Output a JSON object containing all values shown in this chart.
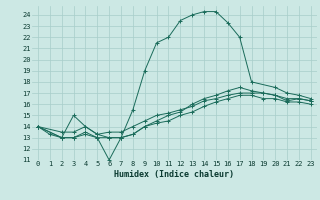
{
  "xlabel": "Humidex (Indice chaleur)",
  "xlim": [
    -0.5,
    23.5
  ],
  "ylim": [
    11,
    24.8
  ],
  "xticks": [
    0,
    1,
    2,
    3,
    4,
    5,
    6,
    7,
    8,
    9,
    10,
    11,
    12,
    13,
    14,
    15,
    16,
    17,
    18,
    19,
    20,
    21,
    22,
    23
  ],
  "yticks": [
    11,
    12,
    13,
    14,
    15,
    16,
    17,
    18,
    19,
    20,
    21,
    22,
    23,
    24
  ],
  "bg_color": "#cce8e4",
  "grid_color": "#a8ceca",
  "line_color": "#1a6b5a",
  "line1_x": [
    0,
    1,
    2,
    3,
    4,
    5,
    6,
    7,
    8,
    9,
    10,
    11,
    12,
    13,
    14,
    15,
    16,
    17,
    18,
    20,
    21,
    22,
    23
  ],
  "line1_y": [
    14,
    13.3,
    13,
    13,
    13.3,
    13,
    11,
    13,
    15.5,
    19,
    21.5,
    22,
    23.5,
    24,
    24.3,
    24.3,
    23.3,
    22,
    18,
    17.5,
    17,
    16.8,
    16.5
  ],
  "line2_x": [
    0,
    2,
    3,
    4,
    5,
    6,
    7,
    8,
    9,
    10,
    11,
    12,
    13,
    14,
    15,
    16,
    17,
    18,
    19,
    20,
    21,
    22,
    23
  ],
  "line2_y": [
    14,
    13,
    15,
    14,
    13.3,
    13,
    13,
    13.3,
    14,
    14.5,
    15,
    15.3,
    16,
    16.5,
    16.8,
    17.2,
    17.5,
    17.2,
    17,
    16.8,
    16.3,
    16.5,
    16.3
  ],
  "line3_x": [
    0,
    2,
    3,
    4,
    5,
    6,
    7,
    8,
    9,
    10,
    11,
    12,
    13,
    14,
    15,
    16,
    17,
    18,
    19,
    20,
    21,
    22,
    23
  ],
  "line3_y": [
    14,
    13,
    13,
    13.5,
    13,
    13,
    13,
    13.3,
    14,
    14.3,
    14.5,
    15,
    15.3,
    15.8,
    16.2,
    16.5,
    16.8,
    16.8,
    16.5,
    16.5,
    16.2,
    16.2,
    16
  ],
  "line4_x": [
    0,
    2,
    3,
    4,
    5,
    6,
    7,
    8,
    9,
    10,
    11,
    12,
    13,
    14,
    15,
    16,
    17,
    18,
    19,
    20,
    21,
    22,
    23
  ],
  "line4_y": [
    14,
    13.5,
    13.5,
    14,
    13.3,
    13.5,
    13.5,
    14,
    14.5,
    15,
    15.2,
    15.5,
    15.8,
    16.3,
    16.5,
    16.8,
    17,
    17,
    17,
    16.8,
    16.5,
    16.5,
    16.3
  ]
}
